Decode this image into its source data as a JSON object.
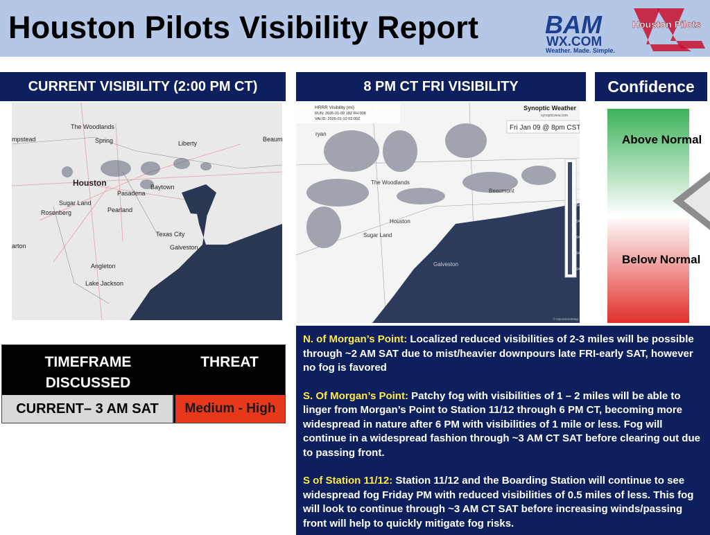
{
  "header": {
    "title": "Houston Pilots Visibility Report",
    "logos": [
      "BAM",
      "WX.COM",
      "Weather. Made. Simple.",
      "Houston Pilots"
    ]
  },
  "panels": {
    "current": {
      "title": "CURRENT VISIBILITY (2:00 PM CT)",
      "map_labels": [
        "The Woodlands",
        "Spring",
        "Liberty",
        "Beaum",
        "mpstead",
        "Houston",
        "Pasadena",
        "Baytown",
        "Sugar Land",
        "Pearland",
        "Rosenberg",
        "Texas City",
        "Galveston",
        "arton",
        "Angleton",
        "Lake Jackson"
      ]
    },
    "forecast": {
      "title": "8 PM CT FRI VISIBILITY",
      "map_info": [
        "HRRR Visibility (mi)",
        "RUN: 2026-01-09 18Z FH 008",
        "VALID: 2026-01-10 02:00Z"
      ],
      "source": "Synoptic Weather",
      "source_url": "synopticview.com",
      "timestamp": "Fri Jan 09 @ 8pm CST",
      "legend": [
        "0.19",
        "0.44",
        "0.94",
        "1.94",
        "2.94",
        "4.94",
        "6.94"
      ],
      "map_labels": [
        "ryan",
        "The Woodlands",
        "Beaumont",
        "Houston",
        "Sugar Land",
        "Galveston"
      ],
      "credit": "© OpenStreetMap"
    },
    "confidence": {
      "title": "Confidence",
      "above": "Above Normal",
      "below": "Below Normal"
    }
  },
  "table": {
    "headers": [
      "TIMEFRAME DISCUSSED",
      "THREAT"
    ],
    "rows": [
      [
        "CURRENT– 3 AM SAT",
        "Medium - High"
      ]
    ]
  },
  "discussion": [
    {
      "label": "N. of Morgan’s Point:",
      "text": " Localized reduced visibilities of 2-3 miles will be possible through ~2 AM SAT due to mist/heavier downpours late FRI-early SAT, however no fog is favored"
    },
    {
      "label": "S. Of Morgan’s Point:",
      "text": " Patchy fog with visibilities of 1 – 2 miles will be able to linger from Morgan’s Point to Station 11/12 through 6 PM CT, becoming more widespread in nature after 6 PM with visibilities of 1 mile or less. Fog will continue in a widespread fashion through ~3 AM CT SAT before clearing out due to passing front."
    },
    {
      "label": "S of Station 11/12:",
      "text": " Station 11/12 and the Boarding Station will continue to see widespread fog Friday PM with reduced visibilities of 0.5 miles of less. This fog will look to continue through ~3 AM CT SAT before increasing winds/passing front will help to quickly mitigate fog risks."
    }
  ]
}
